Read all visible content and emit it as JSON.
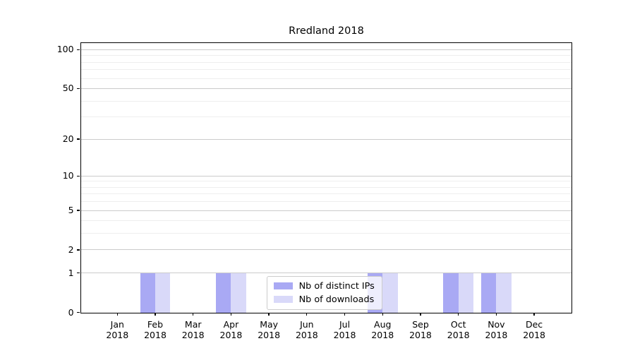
{
  "figure": {
    "background": "#ffffff"
  },
  "chart_data": {
    "type": "bar",
    "title": "Rredland 2018",
    "categories": [
      "Jan",
      "Feb",
      "Mar",
      "Apr",
      "May",
      "Jun",
      "Jul",
      "Aug",
      "Sep",
      "Oct",
      "Nov",
      "Dec"
    ],
    "category_year": "2018",
    "series": [
      {
        "name": "Nb of distinct IPs",
        "color": "#a9a9f4",
        "values": [
          0,
          1,
          0,
          1,
          0,
          0,
          0,
          1,
          0,
          1,
          1,
          0
        ]
      },
      {
        "name": "Nb of downloads",
        "color": "#d9d9f9",
        "values": [
          0,
          1,
          0,
          1,
          0,
          0,
          0,
          1,
          0,
          1,
          1,
          0
        ]
      }
    ],
    "xlabel": "",
    "ylabel": "",
    "yscale": "log1p",
    "ylim": [
      0,
      113
    ],
    "yticks": [
      0,
      1,
      2,
      5,
      10,
      20,
      50,
      100
    ],
    "minor_grid_values": [
      3,
      4,
      6,
      7,
      8,
      9,
      30,
      40,
      60,
      70,
      80,
      90
    ],
    "grid": "on",
    "legend_position": "bottom-center",
    "colors": {
      "major_grid": "#cbcbcb",
      "minor_grid": "#eeeeee",
      "axis": "#000000",
      "text": "#000000"
    }
  }
}
